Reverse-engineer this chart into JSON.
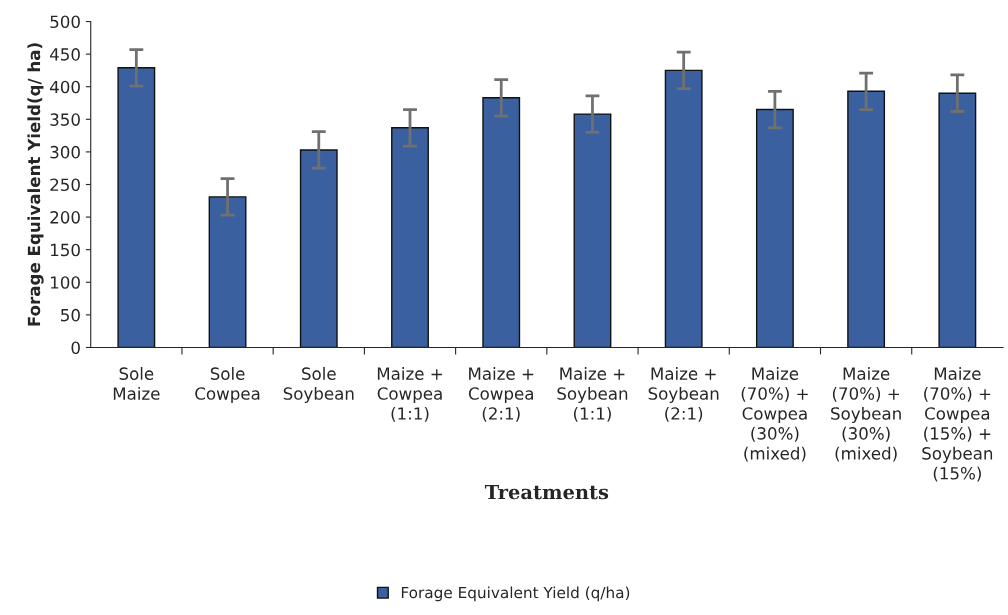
{
  "chart_data": {
    "type": "bar",
    "categories": [
      "Sole\nMaize",
      "Sole\nCowpea",
      "Sole\nSoybean",
      "Maize +\nCowpea\n(1:1)",
      "Maize +\nCowpea\n(2:1)",
      "Maize +\nSoybean\n(1:1)",
      "Maize +\nSoybean\n(2:1)",
      "Maize\n(70%) +\nCowpea\n(30%)\n(mixed)",
      "Maize\n(70%) +\nSoybean\n(30%)\n(mixed)",
      "Maize\n(70%) +\nCowpea\n(15%) +\nSoybean\n(15%)"
    ],
    "series": [
      {
        "name": "Forage Equivalent Yield (q/ha)",
        "color": "#3a60a0",
        "values": [
          429,
          231,
          303,
          337,
          383,
          358,
          425,
          365,
          393,
          390
        ],
        "errors": [
          28,
          28,
          28,
          28,
          28,
          28,
          28,
          28,
          28,
          28
        ]
      }
    ],
    "xlabel": "Treatments",
    "ylabel": "Forage Equivalent Yield(q/ ha)",
    "ylim": [
      0,
      500
    ],
    "yticks": [
      0,
      50,
      100,
      150,
      200,
      250,
      300,
      350,
      400,
      450,
      500
    ],
    "grid": false,
    "legend": "bottom"
  }
}
